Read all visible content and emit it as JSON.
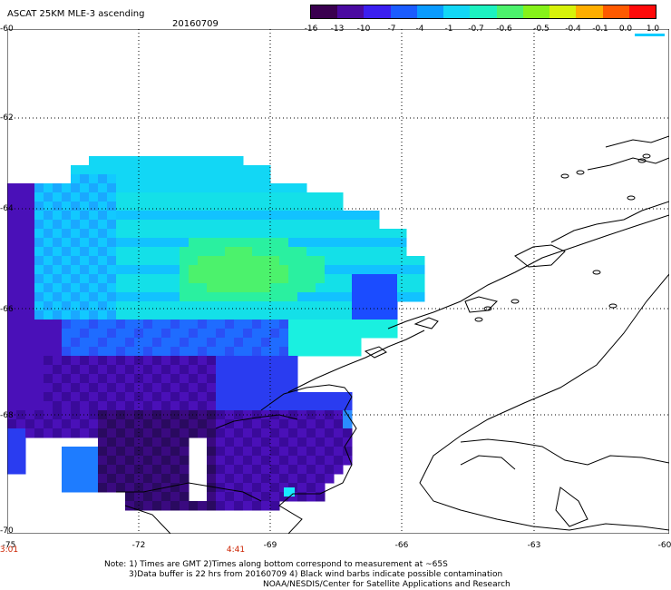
{
  "header": {
    "title": "ASCAT 25KM MLE-3 ascending",
    "date": "20160709"
  },
  "colorbar": {
    "labels": [
      "-16",
      "-13",
      "-10",
      "-7",
      "-4",
      "-1",
      "-0.7",
      "-0.6",
      "-0.5",
      "-0.4",
      "-0.1",
      "0.0",
      "1.0"
    ],
    "colors": [
      "#3a004f",
      "#4a0aa0",
      "#3b1ff0",
      "#1b5cff",
      "#0a9bff",
      "#12d7f5",
      "#1df2c0",
      "#4cf26c",
      "#86f21a",
      "#d7f20a",
      "#ffae00",
      "#ff5a00",
      "#ff0a0a"
    ],
    "underline_color": "#00ccff"
  },
  "axes": {
    "lat_labels": [
      "-60",
      "-62",
      "-64",
      "-66",
      "-68",
      "-70"
    ],
    "lon_labels": [
      "-75",
      "-72",
      "-69",
      "-66",
      "-63",
      "-60"
    ],
    "time_labels": [
      "3:01",
      "4:41"
    ]
  },
  "notes": {
    "line1": "Note: 1) Times are GMT 2)Times along bottom correspond to measurement at ~65S",
    "line2": "3)Data buffer is 22 hrs from 20160709 4) Black wind barbs indicate possible contamination",
    "line3": "NOAA/NESDIS/Center for Satellite Applications and Research"
  }
}
